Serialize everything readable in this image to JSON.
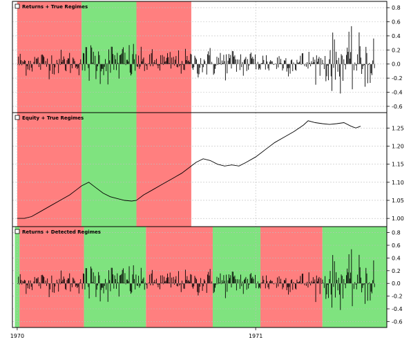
{
  "chart_data": [
    {
      "type": "bar",
      "title": "Returns + True Regimes",
      "ylim": [
        -0.65,
        0.85
      ],
      "yticks": [
        "0.8",
        "0.6",
        "0.4",
        "0.2",
        "0.0",
        "-0.2",
        "-0.4",
        "-0.6"
      ],
      "ytick_values": [
        0.8,
        0.6,
        0.4,
        0.2,
        0.0,
        -0.2,
        -0.4,
        -0.6
      ],
      "regimes": [
        {
          "color": "#ff7f7f",
          "start": 0.0,
          "end": 0.27
        },
        {
          "color": "#7fe37f",
          "start": 0.27,
          "end": 0.5
        },
        {
          "color": "#ff7f7f",
          "start": 0.5,
          "end": 0.73
        }
      ],
      "grid": true,
      "legend": "top-left"
    },
    {
      "type": "line",
      "title": "Equity + True Regimes",
      "ylim": [
        0.985,
        1.285
      ],
      "yticks": [
        "1.25",
        "1.20",
        "1.15",
        "1.10",
        "1.05",
        "1.00"
      ],
      "ytick_values": [
        1.25,
        1.2,
        1.15,
        1.1,
        1.05,
        1.0
      ],
      "regimes": [
        {
          "color": "#ff7f7f",
          "start": 0.0,
          "end": 0.27
        },
        {
          "color": "#7fe37f",
          "start": 0.27,
          "end": 0.5
        },
        {
          "color": "#ff7f7f",
          "start": 0.5,
          "end": 0.73
        }
      ],
      "x": [
        0.0,
        0.03,
        0.06,
        0.1,
        0.14,
        0.18,
        0.22,
        0.25,
        0.27,
        0.3,
        0.33,
        0.36,
        0.39,
        0.42,
        0.45,
        0.48,
        0.5,
        0.53,
        0.57,
        0.61,
        0.65,
        0.69,
        0.72,
        0.75,
        0.78,
        0.81,
        0.84,
        0.87,
        0.9,
        0.93,
        0.96,
        1.0,
        1.04,
        1.08,
        1.12,
        1.16,
        1.2,
        1.22,
        1.25,
        1.28,
        1.31,
        1.34,
        1.37,
        1.4,
        1.42,
        1.44
      ],
      "y": [
        1.0,
        1.0,
        1.005,
        1.02,
        1.035,
        1.05,
        1.065,
        1.08,
        1.09,
        1.1,
        1.085,
        1.07,
        1.06,
        1.055,
        1.05,
        1.048,
        1.05,
        1.065,
        1.08,
        1.095,
        1.11,
        1.125,
        1.14,
        1.155,
        1.165,
        1.16,
        1.15,
        1.145,
        1.148,
        1.145,
        1.155,
        1.17,
        1.19,
        1.21,
        1.225,
        1.24,
        1.258,
        1.27,
        1.265,
        1.262,
        1.26,
        1.262,
        1.265,
        1.255,
        1.25,
        1.255
      ],
      "grid": true,
      "legend": "top-left"
    },
    {
      "type": "bar",
      "title": "Returns + Detected Regimes",
      "ylim": [
        -0.65,
        0.85
      ],
      "yticks": [
        "0.8",
        "0.6",
        "0.4",
        "0.2",
        "0.0",
        "-0.2",
        "-0.4",
        "-0.6"
      ],
      "ytick_values": [
        0.8,
        0.6,
        0.4,
        0.2,
        0.0,
        -0.2,
        -0.4,
        -0.6
      ],
      "regimes": [
        {
          "color": "#7fe37f",
          "start": -0.01,
          "end": 0.01
        },
        {
          "color": "#ff7f7f",
          "start": 0.01,
          "end": 0.28
        },
        {
          "color": "#7fe37f",
          "start": 0.28,
          "end": 0.54
        },
        {
          "color": "#ff7f7f",
          "start": 0.54,
          "end": 0.82
        },
        {
          "color": "#7fe37f",
          "start": 0.82,
          "end": 1.02
        },
        {
          "color": "#ff7f7f",
          "start": 1.02,
          "end": 1.28
        },
        {
          "color": "#7fe37f",
          "start": 1.28,
          "end": 1.55
        }
      ],
      "grid": true,
      "legend": "top-left"
    }
  ],
  "xaxis": {
    "xlim": [
      -0.02,
      1.55
    ],
    "ticks": [
      "1970",
      "1971"
    ],
    "tick_values": [
      0.0,
      1.0
    ]
  }
}
